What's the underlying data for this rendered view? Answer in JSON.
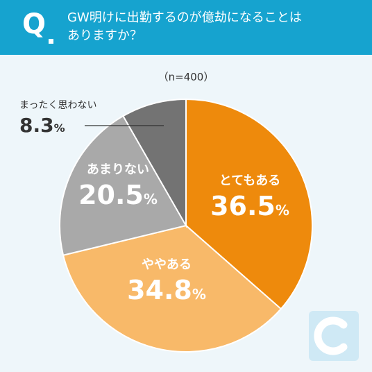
{
  "question": {
    "mark": "Q",
    "line1": "GW明けに出勤するのが億劫になることは",
    "line2": "ありますか？"
  },
  "sample_size": "（n=400）",
  "percent_sign": "%",
  "colors": {
    "header": "#16a3cf",
    "very": "#ee8a0c",
    "somewhat": "#f8b969",
    "not_really": "#a9a9a9",
    "not_at_all": "#737373"
  },
  "chart_data": {
    "type": "pie",
    "title": "GW明けに出勤するのが億劫になることはありますか？",
    "subtitle": "（n=400）",
    "start": "12 o'clock, clockwise",
    "slices": [
      {
        "label": "とてもある",
        "value": 36.5
      },
      {
        "label": "ややある",
        "value": 34.8
      },
      {
        "label": "あまりない",
        "value": 20.5
      },
      {
        "label": "まったく思わない",
        "value": 8.3
      }
    ]
  }
}
